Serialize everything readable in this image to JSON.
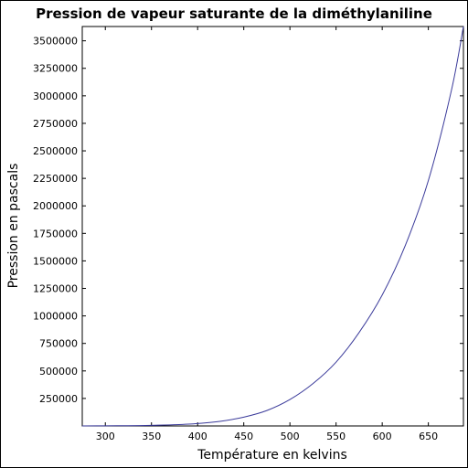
{
  "chart_data": {
    "type": "line",
    "title": "Pression de vapeur saturante de la diméthylaniline",
    "xlabel": "Température en kelvins",
    "ylabel": "Pression en pascals",
    "xlim": [
      275,
      688
    ],
    "ylim": [
      0,
      3630000
    ],
    "grid": false,
    "xticks": [
      300,
      350,
      400,
      450,
      500,
      550,
      600,
      650
    ],
    "xtick_labels": [
      "300",
      "350",
      "400",
      "450",
      "500",
      "550",
      "600",
      "650"
    ],
    "yticks": [
      250000,
      500000,
      750000,
      1000000,
      1250000,
      1500000,
      1750000,
      2000000,
      2250000,
      2500000,
      2750000,
      3000000,
      3250000,
      3500000
    ],
    "ytick_labels": [
      "250000",
      "500000",
      "750000",
      "1000000",
      "1250000",
      "1500000",
      "1750000",
      "2000000",
      "2250000",
      "2500000",
      "2750000",
      "3000000",
      "3250000",
      "3500000"
    ],
    "series": [
      {
        "color": "#3a3a9a",
        "x": [
          275,
          300,
          325,
          350,
          375,
          400,
          425,
          450,
          475,
          500,
          525,
          550,
          575,
          600,
          625,
          650,
          675,
          688
        ],
        "y": [
          0,
          1000,
          2500,
          5000,
          11000,
          22000,
          43000,
          80000,
          140000,
          240000,
          385000,
          580000,
          850000,
          1190000,
          1640000,
          2230000,
          3050000,
          3630000
        ]
      }
    ]
  }
}
